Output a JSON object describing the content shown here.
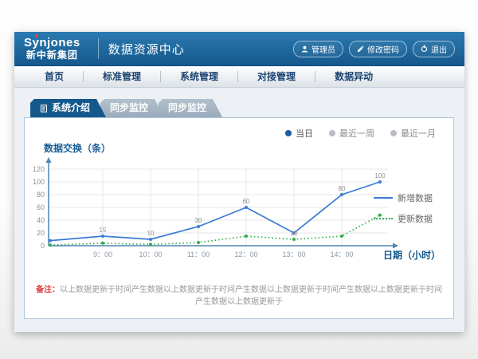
{
  "header": {
    "logo_line1": "Synjones",
    "logo_line2": "新中新集团",
    "app_title": "数据资源中心",
    "user_label": "管理员",
    "change_password_label": "修改密码",
    "logout_label": "退出"
  },
  "nav": {
    "items": [
      {
        "label": "首页"
      },
      {
        "label": "标准管理"
      },
      {
        "label": "系统管理"
      },
      {
        "label": "对接管理"
      },
      {
        "label": "数据异动"
      }
    ]
  },
  "tabs": [
    {
      "label": "系统介绍",
      "active": true
    },
    {
      "label": "同步监控",
      "active": false
    },
    {
      "label": "同步监控",
      "active": false
    }
  ],
  "filters": {
    "options": [
      {
        "label": "当日",
        "selected": true
      },
      {
        "label": "最近一周",
        "selected": false
      },
      {
        "label": "最近一月",
        "selected": false
      }
    ]
  },
  "colors": {
    "header_blue": "#15588c",
    "accent_blue": "#14588c",
    "line_blue": "#3a7bd5",
    "line_green": "#2fae4a",
    "axis_blue": "#4e86b4"
  },
  "chart_data": {
    "type": "line",
    "title": "",
    "ylabel": "数据交换（条）",
    "xlabel": "日期（小时）",
    "x_ticks": [
      "9：00",
      "10：00",
      "11：00",
      "12：00",
      "13：00",
      "14：00"
    ],
    "y_ticks": [
      0,
      20,
      40,
      60,
      80,
      100,
      120
    ],
    "ylim": [
      0,
      130
    ],
    "grid": true,
    "legend_position": "right",
    "note_x_axis": "first and last data points sit before 9:00 and after 14:00 without tick labels",
    "series": [
      {
        "name": "新增数据",
        "color": "#3a7bd5",
        "style": "solid",
        "values": [
          8,
          15,
          10,
          30,
          60,
          20,
          80,
          100
        ],
        "labels": [
          "",
          "15",
          "10",
          "30",
          "60",
          "",
          "80",
          "100"
        ]
      },
      {
        "name": "更新数据",
        "color": "#2fae4a",
        "style": "dotted",
        "values": [
          1,
          4,
          2,
          5,
          15,
          10,
          15,
          48
        ],
        "labels": [
          "",
          "",
          "",
          "",
          "",
          "10",
          "",
          ""
        ]
      }
    ]
  },
  "note": {
    "label": "备注：",
    "text": "以上数据更新于时间产生数据以上数据更新于时间产生数据以上数据更新于时间产生数据以上数据更新于时间产生数据以上数据更新于"
  }
}
